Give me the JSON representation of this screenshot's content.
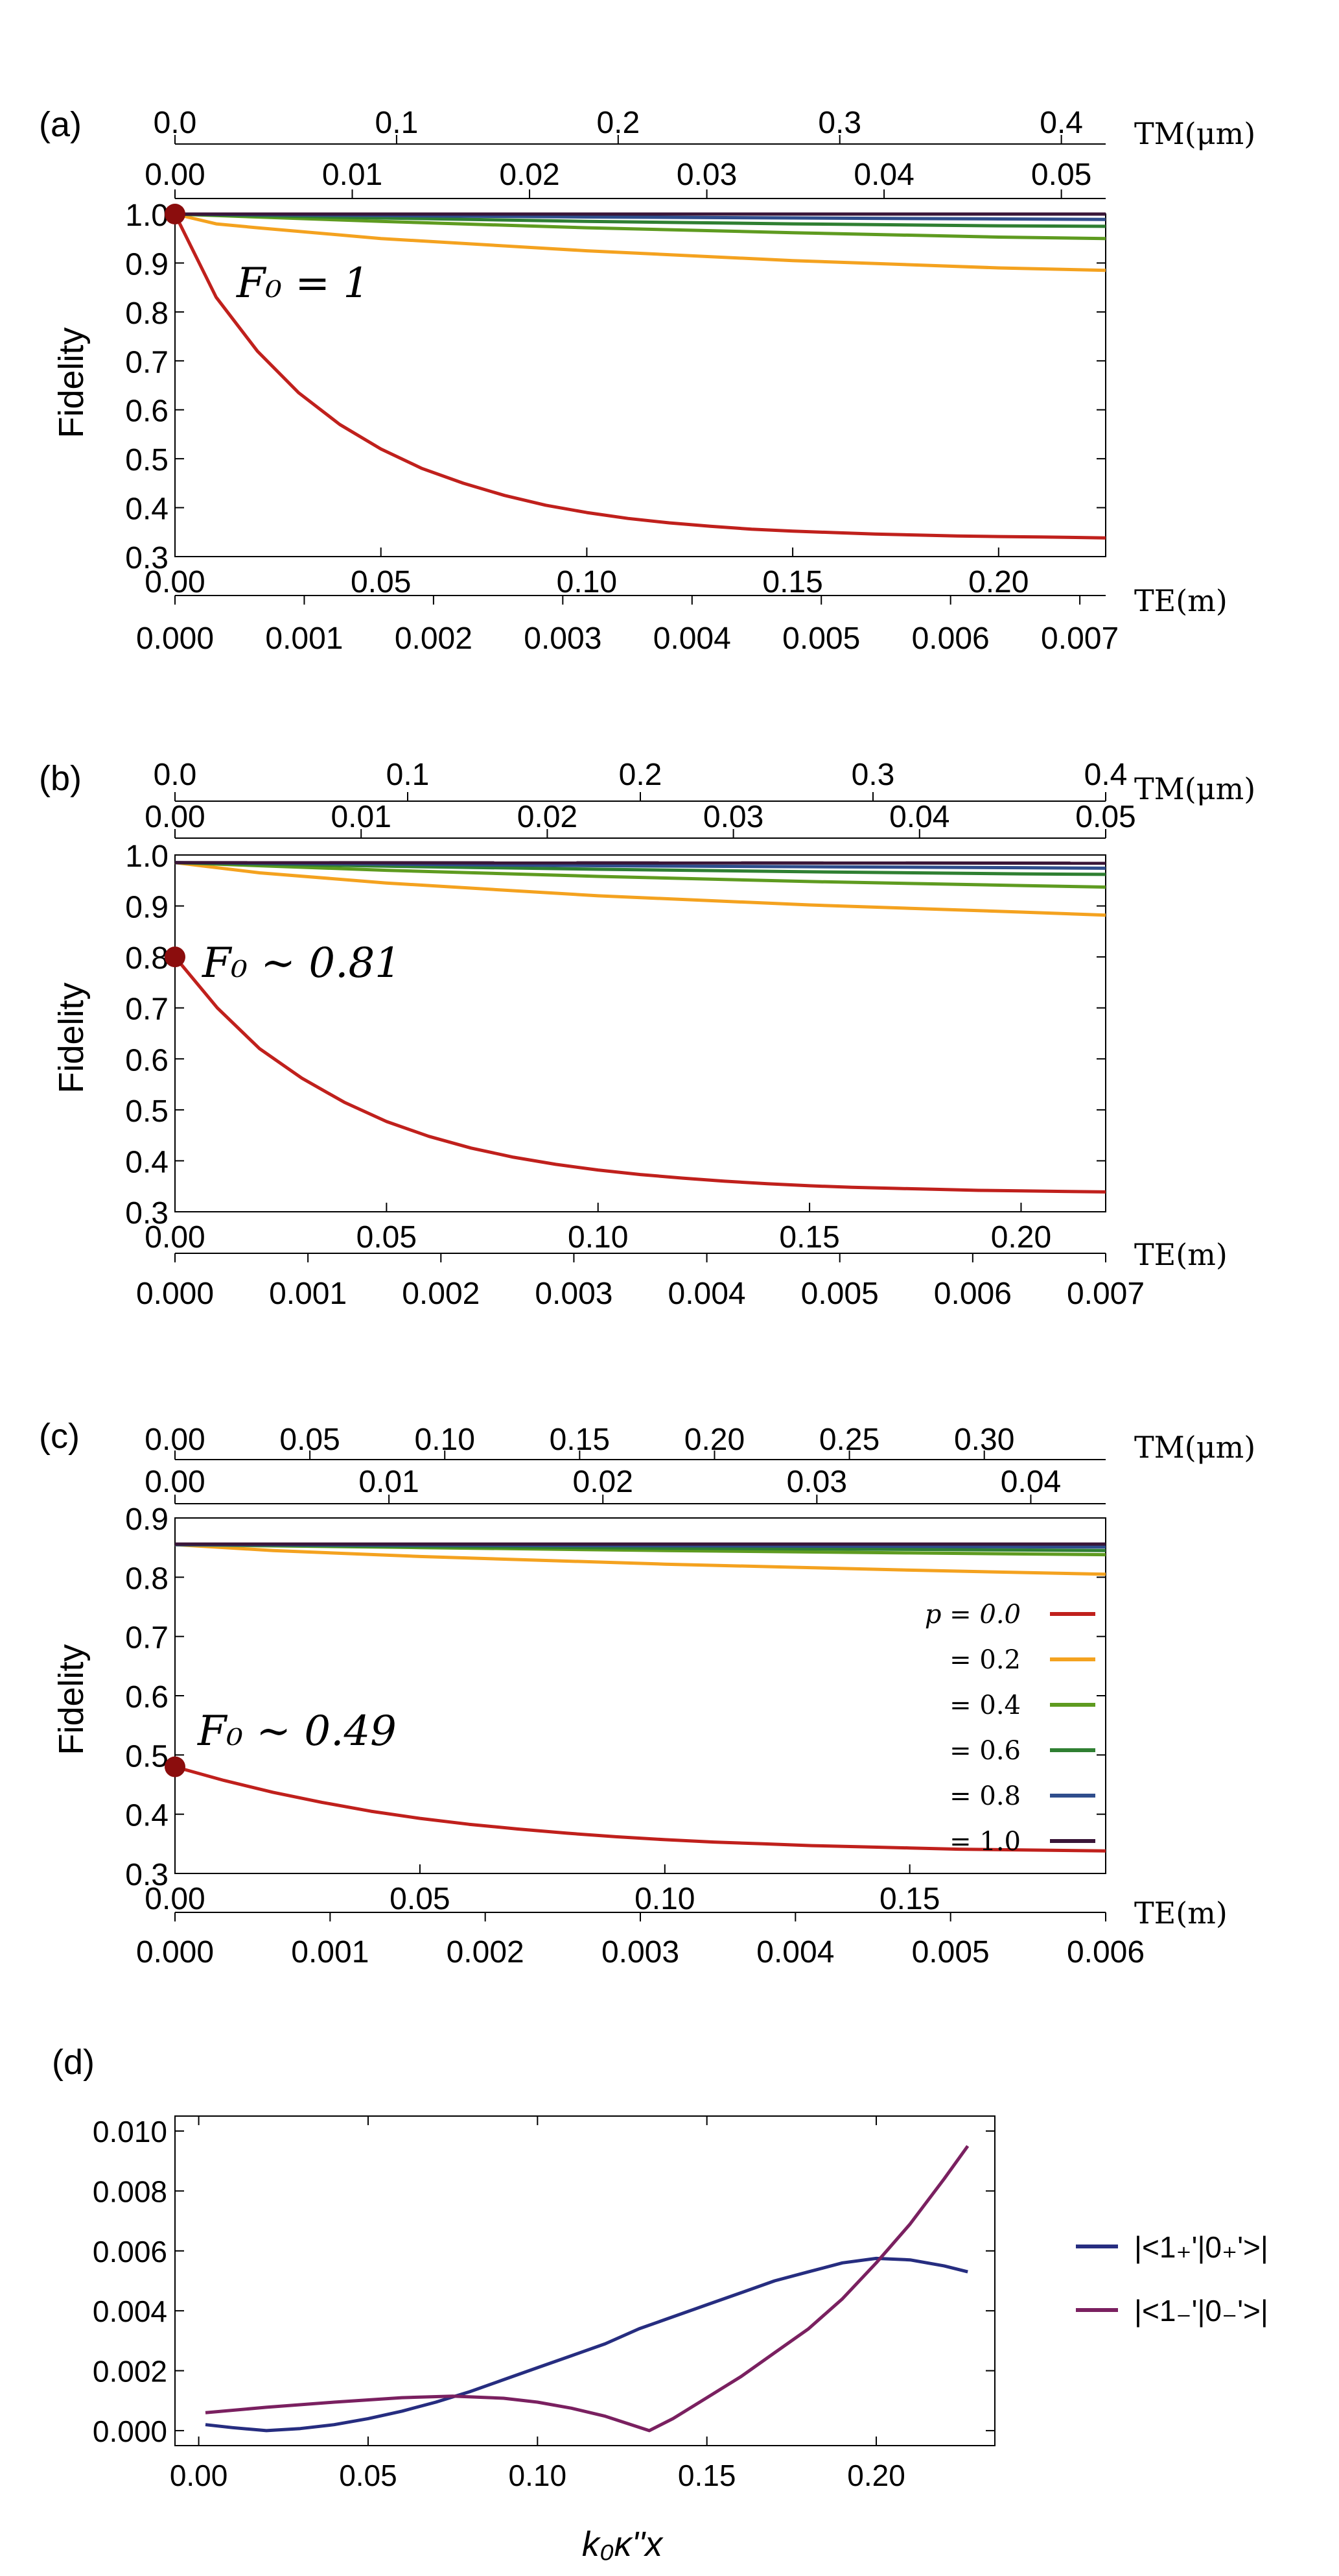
{
  "chart_data": [
    {
      "panel_label": "(a)",
      "type": "line",
      "ylabel": "Fidelity",
      "ylim": [
        0.3,
        1.0
      ],
      "yticks": [
        "0.3",
        "0.4",
        "0.5",
        "0.6",
        "0.7",
        "0.8",
        "0.9",
        "1.0"
      ],
      "xlim": [
        0,
        0.226
      ],
      "xticks_main": [
        "0.00",
        "0.05",
        "0.10",
        "0.15",
        "0.20"
      ],
      "xlabel_main": "TE(m)",
      "xticks_te2": [
        "0.000",
        "0.001",
        "0.002",
        "0.003",
        "0.004",
        "0.005",
        "0.006",
        "0.007"
      ],
      "te2_max": 0.0072,
      "xticks_tm_outer": [
        "0.0",
        "0.1",
        "0.2",
        "0.3",
        "0.4"
      ],
      "tm_outer_max": 0.42,
      "xticks_tm_inner": [
        "0.00",
        "0.01",
        "0.02",
        "0.03",
        "0.04",
        "0.05"
      ],
      "tm_inner_max": 0.0525,
      "xlabel_top": "TM(μm)",
      "annotation": "F₀ = 1",
      "start_point": [
        0,
        1.0
      ],
      "series": [
        {
          "p": 0.0,
          "color": "#c0201c",
          "x": [
            0,
            0.01,
            0.02,
            0.03,
            0.04,
            0.05,
            0.06,
            0.07,
            0.08,
            0.09,
            0.1,
            0.11,
            0.12,
            0.13,
            0.14,
            0.15,
            0.16,
            0.17,
            0.18,
            0.19,
            0.2,
            0.21,
            0.22,
            0.226
          ],
          "y": [
            1.0,
            0.83,
            0.72,
            0.635,
            0.57,
            0.52,
            0.48,
            0.45,
            0.425,
            0.405,
            0.39,
            0.378,
            0.369,
            0.362,
            0.356,
            0.352,
            0.349,
            0.346,
            0.344,
            0.342,
            0.341,
            0.34,
            0.339,
            0.338
          ]
        },
        {
          "p": 0.2,
          "color": "#f4a21f",
          "x": [
            0,
            0.01,
            0.02,
            0.05,
            0.1,
            0.15,
            0.2,
            0.226
          ],
          "y": [
            1.0,
            0.98,
            0.972,
            0.95,
            0.925,
            0.905,
            0.89,
            0.885
          ]
        },
        {
          "p": 0.4,
          "color": "#5e9b20",
          "x": [
            0,
            0.05,
            0.1,
            0.15,
            0.2,
            0.226
          ],
          "y": [
            1.0,
            0.985,
            0.972,
            0.962,
            0.953,
            0.95
          ]
        },
        {
          "p": 0.6,
          "color": "#2f7f32",
          "x": [
            0,
            0.05,
            0.1,
            0.15,
            0.2,
            0.226
          ],
          "y": [
            1.0,
            0.992,
            0.985,
            0.98,
            0.976,
            0.975
          ]
        },
        {
          "p": 0.8,
          "color": "#2f4d8c",
          "x": [
            0,
            0.05,
            0.1,
            0.15,
            0.2,
            0.226
          ],
          "y": [
            1.0,
            0.997,
            0.994,
            0.992,
            0.99,
            0.989
          ]
        },
        {
          "p": 1.0,
          "color": "#3a1638",
          "x": [
            0,
            0.226
          ],
          "y": [
            1.0,
            1.0
          ]
        }
      ]
    },
    {
      "panel_label": "(b)",
      "type": "line",
      "ylabel": "Fidelity",
      "ylim": [
        0.3,
        1.0
      ],
      "yticks": [
        "0.3",
        "0.4",
        "0.5",
        "0.6",
        "0.7",
        "0.8",
        "0.9",
        "1.0"
      ],
      "xlim": [
        0,
        0.22
      ],
      "xticks_main": [
        "0.00",
        "0.05",
        "0.10",
        "0.15",
        "0.20"
      ],
      "xlabel_main": "TE(m)",
      "xticks_te2": [
        "0.000",
        "0.001",
        "0.002",
        "0.003",
        "0.004",
        "0.005",
        "0.006",
        "0.007"
      ],
      "te2_max": 0.007,
      "xticks_tm_outer": [
        "0.0",
        "0.1",
        "0.2",
        "0.3",
        "0.4"
      ],
      "tm_outer_max": 0.4,
      "xticks_tm_inner": [
        "0.00",
        "0.01",
        "0.02",
        "0.03",
        "0.04",
        "0.05"
      ],
      "tm_inner_max": 0.05,
      "xlabel_top": "TM(μm)",
      "annotation": "F₀ ∼ 0.81",
      "start_point": [
        0,
        0.8
      ],
      "series": [
        {
          "p": 0.0,
          "color": "#c0201c",
          "x": [
            0,
            0.01,
            0.02,
            0.03,
            0.04,
            0.05,
            0.06,
            0.07,
            0.08,
            0.09,
            0.1,
            0.11,
            0.12,
            0.13,
            0.14,
            0.15,
            0.16,
            0.17,
            0.18,
            0.19,
            0.2,
            0.21,
            0.22
          ],
          "y": [
            0.8,
            0.7,
            0.62,
            0.562,
            0.515,
            0.477,
            0.448,
            0.425,
            0.407,
            0.393,
            0.382,
            0.373,
            0.366,
            0.36,
            0.355,
            0.351,
            0.348,
            0.346,
            0.344,
            0.342,
            0.341,
            0.34,
            0.339
          ]
        },
        {
          "p": 0.2,
          "color": "#f4a21f",
          "x": [
            0,
            0.02,
            0.05,
            0.1,
            0.15,
            0.2,
            0.22
          ],
          "y": [
            0.985,
            0.965,
            0.945,
            0.92,
            0.902,
            0.888,
            0.882
          ]
        },
        {
          "p": 0.4,
          "color": "#5e9b20",
          "x": [
            0,
            0.05,
            0.1,
            0.15,
            0.2,
            0.22
          ],
          "y": [
            0.985,
            0.97,
            0.958,
            0.948,
            0.94,
            0.937
          ]
        },
        {
          "p": 0.6,
          "color": "#2f7f32",
          "x": [
            0,
            0.05,
            0.1,
            0.15,
            0.2,
            0.22
          ],
          "y": [
            0.985,
            0.978,
            0.972,
            0.967,
            0.963,
            0.962
          ]
        },
        {
          "p": 0.8,
          "color": "#2f4d8c",
          "x": [
            0,
            0.05,
            0.1,
            0.15,
            0.2,
            0.22
          ],
          "y": [
            0.985,
            0.982,
            0.979,
            0.977,
            0.975,
            0.974
          ]
        },
        {
          "p": 1.0,
          "color": "#3a1638",
          "x": [
            0,
            0.22
          ],
          "y": [
            0.985,
            0.984
          ]
        }
      ]
    },
    {
      "panel_label": "(c)",
      "type": "line",
      "ylabel": "Fidelity",
      "ylim": [
        0.3,
        0.9
      ],
      "yticks": [
        "0.3",
        "0.4",
        "0.5",
        "0.6",
        "0.7",
        "0.8",
        "0.9"
      ],
      "xlim": [
        0,
        0.19
      ],
      "xticks_main": [
        "0.00",
        "0.05",
        "0.10",
        "0.15"
      ],
      "xlabel_main": "TE(m)",
      "xticks_te2": [
        "0.000",
        "0.001",
        "0.002",
        "0.003",
        "0.004",
        "0.005",
        "0.006"
      ],
      "te2_max": 0.006,
      "xticks_tm_outer": [
        "0.00",
        "0.05",
        "0.10",
        "0.15",
        "0.20",
        "0.25",
        "0.30"
      ],
      "tm_outer_max": 0.345,
      "xticks_tm_inner": [
        "0.00",
        "0.01",
        "0.02",
        "0.03",
        "0.04"
      ],
      "tm_inner_max": 0.0435,
      "xlabel_top": "TM(μm)",
      "annotation": "F₀ ∼ 0.49",
      "start_point": [
        0,
        0.48
      ],
      "legend": {
        "first_label": "p = 0.0",
        "other_labels": [
          "= 0.2",
          "= 0.4",
          "= 0.6",
          "= 0.8",
          "= 1.0"
        ],
        "placement": "right"
      },
      "series": [
        {
          "p": 0.0,
          "color": "#c0201c",
          "x": [
            0,
            0.01,
            0.02,
            0.03,
            0.04,
            0.05,
            0.06,
            0.07,
            0.08,
            0.09,
            0.1,
            0.11,
            0.12,
            0.13,
            0.14,
            0.15,
            0.16,
            0.17,
            0.18,
            0.19
          ],
          "y": [
            0.48,
            0.457,
            0.437,
            0.42,
            0.405,
            0.393,
            0.383,
            0.375,
            0.368,
            0.362,
            0.357,
            0.353,
            0.35,
            0.347,
            0.345,
            0.343,
            0.341,
            0.34,
            0.339,
            0.338
          ]
        },
        {
          "p": 0.2,
          "color": "#f4a21f",
          "x": [
            0,
            0.02,
            0.05,
            0.1,
            0.15,
            0.19
          ],
          "y": [
            0.855,
            0.845,
            0.835,
            0.822,
            0.812,
            0.805
          ]
        },
        {
          "p": 0.4,
          "color": "#5e9b20",
          "x": [
            0,
            0.05,
            0.1,
            0.15,
            0.19
          ],
          "y": [
            0.855,
            0.85,
            0.845,
            0.841,
            0.838
          ]
        },
        {
          "p": 0.6,
          "color": "#2f7f32",
          "x": [
            0,
            0.05,
            0.1,
            0.15,
            0.19
          ],
          "y": [
            0.855,
            0.852,
            0.849,
            0.847,
            0.845
          ]
        },
        {
          "p": 0.8,
          "color": "#2f4d8c",
          "x": [
            0,
            0.05,
            0.1,
            0.15,
            0.19
          ],
          "y": [
            0.855,
            0.854,
            0.853,
            0.852,
            0.851
          ]
        },
        {
          "p": 1.0,
          "color": "#3a1638",
          "x": [
            0,
            0.19
          ],
          "y": [
            0.856,
            0.856
          ]
        }
      ]
    },
    {
      "panel_label": "(d)",
      "type": "line",
      "xlabel": "k₀κ''x",
      "ylabel": "",
      "xlim": [
        -0.007,
        0.235
      ],
      "ylim": [
        -0.0005,
        0.0105
      ],
      "xticks": [
        "0.00",
        "0.05",
        "0.10",
        "0.15",
        "0.20"
      ],
      "yticks": [
        "0.000",
        "0.002",
        "0.004",
        "0.006",
        "0.008",
        "0.010"
      ],
      "legend": {
        "placement": "right"
      },
      "series": [
        {
          "name": "|<1₊'|0₊'>|",
          "color": "#262d80",
          "x": [
            0.002,
            0.01,
            0.02,
            0.03,
            0.04,
            0.05,
            0.06,
            0.07,
            0.08,
            0.09,
            0.1,
            0.11,
            0.12,
            0.13,
            0.14,
            0.15,
            0.16,
            0.17,
            0.18,
            0.19,
            0.2,
            0.21,
            0.22,
            0.227
          ],
          "y": [
            0.0002,
            0.0001,
            0.0,
            7e-05,
            0.0002,
            0.0004,
            0.00065,
            0.00095,
            0.0013,
            0.0017,
            0.0021,
            0.0025,
            0.0029,
            0.0034,
            0.0038,
            0.0042,
            0.0046,
            0.005,
            0.0053,
            0.0056,
            0.00575,
            0.0057,
            0.0055,
            0.0053
          ]
        },
        {
          "name": "|<1₋'|0₋'>|",
          "color": "#7a2060",
          "x": [
            0.002,
            0.02,
            0.04,
            0.06,
            0.075,
            0.09,
            0.1,
            0.11,
            0.12,
            0.133,
            0.14,
            0.15,
            0.16,
            0.17,
            0.18,
            0.19,
            0.2,
            0.21,
            0.22,
            0.227
          ],
          "y": [
            0.0006,
            0.00078,
            0.00095,
            0.0011,
            0.00115,
            0.00108,
            0.00095,
            0.00075,
            0.00048,
            0.0,
            0.0004,
            0.0011,
            0.0018,
            0.0026,
            0.0034,
            0.0044,
            0.0056,
            0.0069,
            0.0084,
            0.0095
          ]
        }
      ]
    }
  ]
}
